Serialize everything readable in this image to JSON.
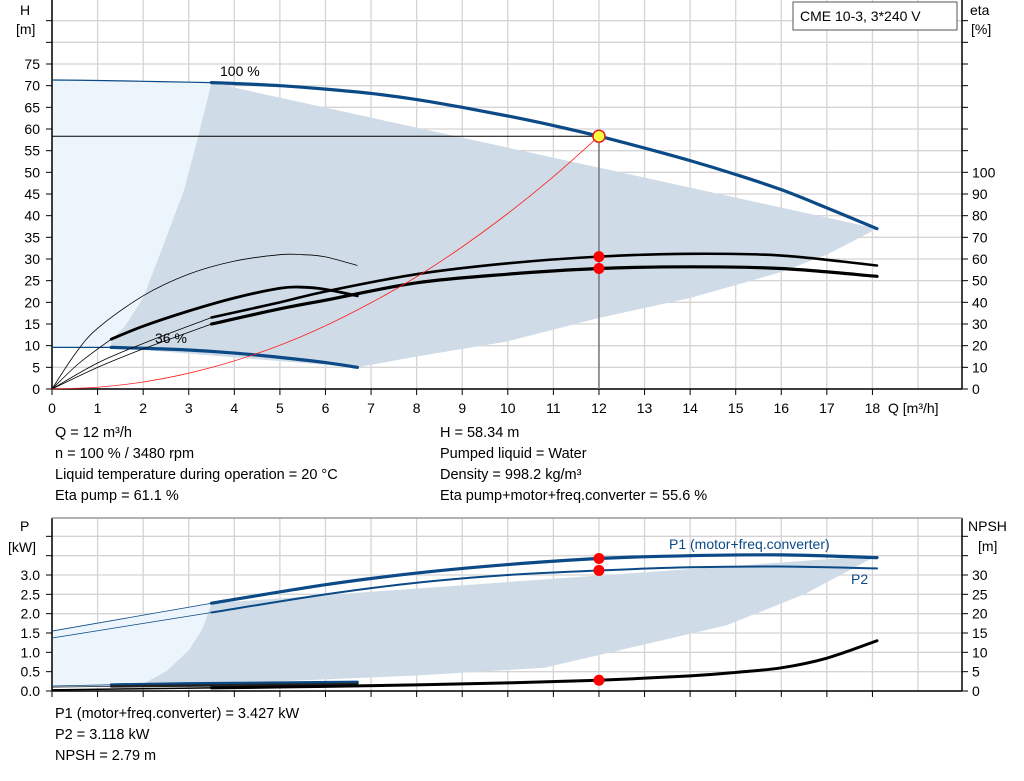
{
  "chart_data": [
    {
      "type": "line",
      "title": "CME 10-3, 3*240 V",
      "xlabel": "Q [m³/h]",
      "ylabel": "H [m]",
      "ylabel_lines": [
        "H",
        "[m]"
      ],
      "y2label_lines": [
        "eta",
        "[%]"
      ],
      "xlim": [
        0,
        20
      ],
      "ylim": [
        0,
        90
      ],
      "y2lim": [
        0,
        180
      ],
      "x_ticks": [
        0,
        1,
        2,
        3,
        4,
        5,
        6,
        7,
        8,
        9,
        10,
        11,
        12,
        13,
        14,
        15,
        16,
        17,
        18
      ],
      "y_ticks": [
        0,
        5,
        10,
        15,
        20,
        25,
        30,
        35,
        40,
        45,
        50,
        55,
        60,
        65,
        70,
        75
      ],
      "y2_ticks": [
        0,
        10,
        20,
        30,
        40,
        50,
        60,
        70,
        80,
        90,
        100
      ],
      "grid": true,
      "colors": {
        "curve": "#0b4a86",
        "eta": "#000000",
        "system": "#ff2020",
        "dark_area": "#cfdbe6",
        "light_area": "#ecf4fc",
        "point": "#ff0000",
        "op_point": "#ffff40"
      },
      "curve_labels": {
        "max": "100 %",
        "min": "36 %"
      },
      "series": [
        {
          "name": "100 %",
          "role": "H",
          "thin_until": 3.5,
          "x": [
            0,
            1,
            2,
            3,
            3.5,
            4,
            5,
            6,
            7,
            8,
            9,
            10,
            11,
            12,
            13,
            14,
            15,
            16,
            17,
            18.1
          ],
          "y": [
            71.3,
            71.2,
            71.0,
            70.8,
            70.7,
            70.5,
            70.0,
            69.2,
            68.2,
            66.8,
            65.0,
            63.0,
            60.8,
            58.34,
            55.6,
            52.7,
            49.5,
            46.0,
            41.8,
            37.0
          ]
        },
        {
          "name": "36 %",
          "role": "H",
          "thin_until": 1.3,
          "x": [
            0,
            1.3,
            2,
            3,
            4,
            5,
            6,
            6.7
          ],
          "y": [
            9.6,
            9.6,
            9.4,
            9.0,
            8.3,
            7.3,
            6.1,
            5.0
          ]
        },
        {
          "role": "eta-36-thin",
          "x": [
            0,
            0.5,
            1,
            2,
            3,
            4,
            5,
            5.5,
            6,
            6.7
          ],
          "y2": [
            0,
            16,
            28,
            43,
            53,
            59,
            62,
            62,
            61,
            57
          ]
        },
        {
          "role": "eta-36",
          "thin_until": 1.3,
          "x": [
            0,
            0.6,
            1.3,
            2,
            3,
            4,
            5,
            5.5,
            6,
            6.7
          ],
          "y2": [
            0,
            12,
            23,
            29,
            36,
            42,
            46.5,
            47,
            46,
            43
          ]
        },
        {
          "role": "eta-pump",
          "thin_until": 3.5,
          "x": [
            0,
            1,
            2,
            3.5,
            5,
            6,
            8,
            10,
            12,
            14,
            16,
            18.1
          ],
          "y2": [
            0,
            12,
            21,
            33,
            40,
            45,
            53,
            58,
            61.1,
            62.4,
            61.6,
            57
          ]
        },
        {
          "role": "eta-total",
          "thin_until": 3.5,
          "x": [
            0,
            1,
            2,
            3.5,
            5,
            6,
            8,
            10,
            12,
            14,
            16,
            18.1
          ],
          "y2": [
            0,
            10,
            18.5,
            30,
            37,
            41,
            49,
            53,
            55.6,
            56.4,
            55.6,
            52
          ]
        },
        {
          "role": "system",
          "x": [
            0,
            1,
            2,
            3,
            4,
            5,
            6,
            7,
            8,
            9,
            10,
            11,
            12
          ],
          "y": [
            0,
            0.41,
            1.62,
            3.65,
            6.48,
            10.1,
            14.6,
            19.9,
            25.9,
            32.8,
            40.5,
            49.0,
            58.34
          ]
        }
      ],
      "operating_region_dark": {
        "x": [
          3.5,
          3.2,
          2.9,
          2.4,
          2.0,
          1.6,
          1.3,
          1.3,
          6.7,
          6.9,
          8,
          10,
          12,
          14,
          16,
          17,
          18.1
        ],
        "y": [
          70.7,
          58,
          46,
          32,
          21,
          14.5,
          11.3,
          9.6,
          5.0,
          5.4,
          7.5,
          11,
          16.4,
          21,
          27,
          31,
          37
        ]
      },
      "operating_region_light_left": {
        "x": [
          0,
          3.5,
          3.2,
          2.9,
          2.4,
          2.0,
          1.6,
          1.3,
          1.3,
          0
        ],
        "y": [
          71.3,
          70.7,
          58,
          46,
          32,
          21,
          14.5,
          11.3,
          9.6,
          9.6
        ]
      },
      "operating_point": {
        "Q": 12,
        "H": 58.34,
        "eta_pump": 61.1,
        "eta_total": 55.6
      }
    },
    {
      "type": "line",
      "xlabel": "",
      "ylabel_lines": [
        "P",
        "[kW]"
      ],
      "y2label_lines": [
        "NPSH",
        "[m]"
      ],
      "xlim": [
        0,
        20
      ],
      "ylim": [
        0,
        4.5
      ],
      "y2lim": [
        0,
        45
      ],
      "y_ticks": [
        "0.0",
        "0.5",
        "1.0",
        "1.5",
        "2.0",
        "2.5",
        "3.0"
      ],
      "y2_ticks": [
        0,
        5,
        10,
        15,
        20,
        25,
        30
      ],
      "grid": true,
      "series": [
        {
          "name": "P1 (motor+freq.converter)",
          "role": "P1",
          "thin_until": 3.5,
          "x": [
            0,
            3.5,
            6,
            8,
            10,
            12,
            14,
            16,
            18.1
          ],
          "y": [
            1.55,
            2.27,
            2.75,
            3.05,
            3.27,
            3.427,
            3.5,
            3.52,
            3.45
          ]
        },
        {
          "name": "P2",
          "role": "P2",
          "thin_until": 3.5,
          "x": [
            0,
            3.5,
            6,
            8,
            10,
            12,
            14,
            16,
            18.1
          ],
          "y": [
            1.37,
            2.03,
            2.5,
            2.8,
            3.0,
            3.118,
            3.2,
            3.22,
            3.17
          ]
        },
        {
          "role": "P1-36",
          "thin_until": 1.3,
          "x": [
            0,
            1.3,
            3,
            5,
            6.7
          ],
          "y": [
            0.13,
            0.16,
            0.19,
            0.21,
            0.23
          ]
        },
        {
          "role": "P2-36",
          "thin_until": 1.3,
          "x": [
            0,
            1.3,
            3,
            5,
            6.7
          ],
          "y": [
            0.1,
            0.12,
            0.14,
            0.16,
            0.18
          ]
        },
        {
          "role": "NPSH",
          "thin_until": 3.5,
          "x": [
            0,
            3.5,
            6,
            8,
            10,
            12,
            14,
            15,
            16,
            17,
            18.1
          ],
          "y2": [
            0.3,
            0.8,
            1.2,
            1.6,
            2.1,
            2.79,
            3.9,
            4.8,
            6.0,
            8.5,
            13.0
          ]
        }
      ],
      "operating_region_dark": {
        "x": [
          3.5,
          3.3,
          3.0,
          2.5,
          1.9,
          1.3,
          4,
          8,
          10.8,
          12,
          14.8,
          16.5,
          18.1
        ],
        "y": [
          2.27,
          1.6,
          1.05,
          0.5,
          0.13,
          0.08,
          0.2,
          0.4,
          0.6,
          0.93,
          1.7,
          2.5,
          3.5
        ]
      },
      "operating_region_light_left": {
        "x": [
          0,
          3.5,
          3.3,
          3.0,
          2.5,
          1.9,
          1.3,
          0
        ],
        "y": [
          1.55,
          2.27,
          1.6,
          1.05,
          0.5,
          0.13,
          0.08,
          0.13
        ]
      },
      "operating_point": {
        "Q": 12,
        "P1": 3.427,
        "P2": 3.118,
        "NPSH": 2.79
      }
    }
  ],
  "info_top_left": [
    "Q = 12 m³/h",
    "n = 100 % / 3480 rpm",
    "Liquid temperature during operation = 20 °C",
    "Eta pump = 61.1 %"
  ],
  "info_top_right": [
    "H = 58.34 m",
    "Pumped liquid = Water",
    "Density = 998.2 kg/m³",
    "Eta pump+motor+freq.converter = 55.6 %"
  ],
  "info_bottom": [
    "P1 (motor+freq.converter) = 3.427 kW",
    "P2 = 3.118 kW",
    "NPSH = 2.79 m"
  ]
}
